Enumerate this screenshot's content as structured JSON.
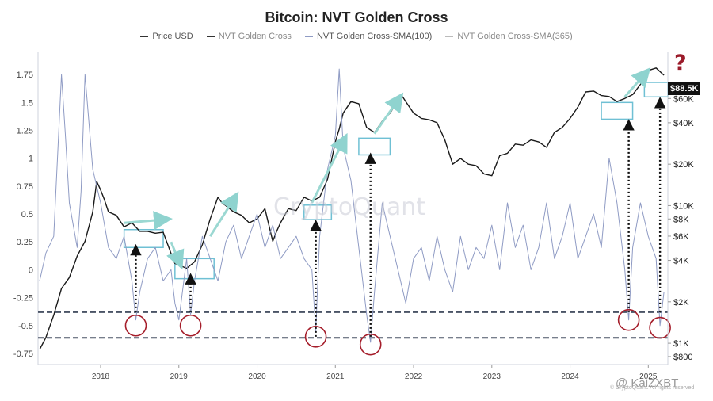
{
  "title": "Bitcoin: NVT Golden Cross",
  "legend": [
    {
      "label": "Price USD",
      "color": "#333333",
      "struck": false
    },
    {
      "label": "NVT Golden Cross",
      "color": "#555555",
      "struck": true
    },
    {
      "label": "NVT Golden Cross-SMA(100)",
      "color": "#8f9bc4",
      "struck": false
    },
    {
      "label": "NVT Golden Cross-SMA(365)",
      "color": "#bbbbbb",
      "struck": true
    }
  ],
  "watermark": "CryptoQuant",
  "question_mark": "?",
  "price_badge": "$88.5K",
  "credit": "@ KaiZXBT",
  "copyright": "© CryptoQuant. All rights reserved",
  "chart_data": {
    "type": "line",
    "x_tick_labels": [
      "2018",
      "2019",
      "2020",
      "2021",
      "2022",
      "2023",
      "2024",
      "2025"
    ],
    "x_range": [
      2017.2,
      2025.25
    ],
    "y_left_ticks": [
      "1.75",
      "1.5",
      "1.25",
      "1",
      "0.75",
      "0.5",
      "0.25",
      "0",
      "-0.25",
      "-0.5",
      "-0.75"
    ],
    "y_left_range": [
      -0.85,
      1.95
    ],
    "y_right_ticks": [
      {
        "label": "$60K",
        "value": 60000
      },
      {
        "label": "$40K",
        "value": 40000
      },
      {
        "label": "$20K",
        "value": 20000
      },
      {
        "label": "$10K",
        "value": 10000
      },
      {
        "label": "$8K",
        "value": 8000
      },
      {
        "label": "$6K",
        "value": 6000
      },
      {
        "label": "$4K",
        "value": 4000
      },
      {
        "label": "$2K",
        "value": 2000
      },
      {
        "label": "$1K",
        "value": 1000
      },
      {
        "label": "$800",
        "value": 800
      }
    ],
    "y_right_scale": "log",
    "y_right_range": [
      700,
      130000
    ],
    "threshold_lines": [
      -0.38,
      -0.61
    ],
    "series": [
      {
        "name": "Price USD",
        "axis": "right",
        "color": "#1a1a1a",
        "x": [
          2017.22,
          2017.3,
          2017.4,
          2017.5,
          2017.6,
          2017.7,
          2017.8,
          2017.9,
          2017.95,
          2018.0,
          2018.05,
          2018.1,
          2018.2,
          2018.3,
          2018.4,
          2018.5,
          2018.6,
          2018.7,
          2018.8,
          2018.9,
          2018.95,
          2019.0,
          2019.1,
          2019.2,
          2019.3,
          2019.4,
          2019.5,
          2019.55,
          2019.6,
          2019.7,
          2019.8,
          2019.9,
          2020.0,
          2020.1,
          2020.2,
          2020.25,
          2020.3,
          2020.4,
          2020.5,
          2020.6,
          2020.7,
          2020.8,
          2020.9,
          2021.0,
          2021.05,
          2021.1,
          2021.2,
          2021.3,
          2021.4,
          2021.5,
          2021.6,
          2021.7,
          2021.8,
          2021.85,
          2021.9,
          2022.0,
          2022.1,
          2022.2,
          2022.3,
          2022.4,
          2022.5,
          2022.6,
          2022.7,
          2022.8,
          2022.9,
          2023.0,
          2023.1,
          2023.2,
          2023.3,
          2023.4,
          2023.5,
          2023.6,
          2023.7,
          2023.8,
          2023.9,
          2024.0,
          2024.1,
          2024.2,
          2024.3,
          2024.4,
          2024.5,
          2024.6,
          2024.7,
          2024.8,
          2024.9,
          2025.0,
          2025.1,
          2025.2
        ],
        "y": [
          900,
          1100,
          1600,
          2500,
          3000,
          4300,
          5500,
          9000,
          15000,
          13000,
          11000,
          9000,
          8500,
          7000,
          7500,
          6500,
          6500,
          6300,
          6400,
          4500,
          3800,
          3700,
          3500,
          3900,
          5200,
          8000,
          11500,
          10500,
          10000,
          9000,
          8500,
          7500,
          8000,
          9500,
          5500,
          6500,
          7500,
          9500,
          9200,
          11500,
          10800,
          11500,
          15500,
          29000,
          36000,
          47000,
          57000,
          55000,
          37000,
          34000,
          41000,
          47000,
          58000,
          63000,
          57000,
          47000,
          43000,
          42000,
          40000,
          30000,
          20000,
          22000,
          20000,
          19500,
          17000,
          16500,
          23000,
          24000,
          28000,
          27500,
          30000,
          29000,
          26500,
          34000,
          37000,
          43000,
          52000,
          67000,
          68000,
          63000,
          62000,
          57000,
          60000,
          64000,
          76000,
          96000,
          100000,
          88500
        ]
      },
      {
        "name": "NVT Golden Cross-SMA(100)",
        "axis": "left",
        "color": "#8f9bc4",
        "x": [
          2017.22,
          2017.3,
          2017.4,
          2017.5,
          2017.55,
          2017.6,
          2017.7,
          2017.75,
          2017.8,
          2017.9,
          2018.0,
          2018.1,
          2018.2,
          2018.3,
          2018.4,
          2018.45,
          2018.5,
          2018.6,
          2018.7,
          2018.8,
          2018.9,
          2018.95,
          2019.0,
          2019.1,
          2019.15,
          2019.2,
          2019.3,
          2019.4,
          2019.5,
          2019.6,
          2019.7,
          2019.8,
          2019.9,
          2020.0,
          2020.1,
          2020.2,
          2020.3,
          2020.4,
          2020.5,
          2020.6,
          2020.7,
          2020.75,
          2020.8,
          2020.9,
          2021.0,
          2021.05,
          2021.1,
          2021.2,
          2021.3,
          2021.4,
          2021.45,
          2021.5,
          2021.6,
          2021.7,
          2021.8,
          2021.9,
          2022.0,
          2022.1,
          2022.2,
          2022.3,
          2022.4,
          2022.5,
          2022.6,
          2022.7,
          2022.8,
          2022.9,
          2023.0,
          2023.1,
          2023.2,
          2023.3,
          2023.4,
          2023.5,
          2023.6,
          2023.7,
          2023.8,
          2023.9,
          2024.0,
          2024.1,
          2024.2,
          2024.3,
          2024.4,
          2024.5,
          2024.6,
          2024.7,
          2024.75,
          2024.8,
          2024.9,
          2025.0,
          2025.1,
          2025.15,
          2025.2
        ],
        "y": [
          -0.1,
          0.15,
          0.3,
          1.75,
          1.2,
          0.6,
          0.2,
          0.7,
          1.75,
          0.9,
          0.6,
          0.2,
          0.1,
          0.3,
          -0.1,
          -0.45,
          -0.2,
          0.1,
          0.2,
          -0.1,
          0.0,
          -0.3,
          -0.45,
          0.1,
          -0.4,
          -0.1,
          0.3,
          0.1,
          -0.1,
          0.25,
          0.4,
          0.1,
          0.3,
          0.5,
          0.2,
          0.4,
          0.1,
          0.2,
          0.3,
          0.1,
          0.0,
          -0.55,
          0.3,
          0.9,
          1.2,
          1.8,
          1.1,
          0.8,
          0.2,
          -0.4,
          -0.65,
          -0.2,
          0.6,
          0.3,
          0.0,
          -0.3,
          0.1,
          0.2,
          -0.1,
          0.3,
          0.0,
          -0.2,
          0.3,
          0.0,
          0.2,
          0.1,
          0.4,
          0.0,
          0.6,
          0.2,
          0.4,
          0.0,
          0.2,
          0.6,
          0.1,
          0.3,
          0.6,
          0.1,
          0.3,
          0.5,
          0.2,
          1.0,
          0.6,
          0.0,
          -0.45,
          0.2,
          0.6,
          0.3,
          0.1,
          -0.5,
          -0.2
        ]
      }
    ],
    "annotations": {
      "circle_points": [
        [
          2018.45,
          -0.5
        ],
        [
          2019.15,
          -0.5
        ],
        [
          2020.75,
          -0.6
        ],
        [
          2021.45,
          -0.67
        ],
        [
          2024.75,
          -0.45
        ],
        [
          2025.15,
          -0.52
        ]
      ],
      "rect_zones": [
        [
          2018.3,
          2018.8,
          0.2,
          0.36
        ],
        [
          2018.95,
          2019.45,
          -0.08,
          0.1
        ],
        [
          2020.6,
          2020.95,
          0.45,
          0.58
        ],
        [
          2021.3,
          2021.7,
          1.03,
          1.18
        ],
        [
          2024.4,
          2024.8,
          1.35,
          1.5
        ],
        [
          2024.95,
          2025.25,
          1.55,
          1.68
        ]
      ],
      "arrows_up": [
        [
          2018.45,
          -0.38,
          0.18
        ],
        [
          2019.15,
          -0.38,
          -0.08
        ],
        [
          2020.75,
          -0.6,
          0.4
        ],
        [
          2021.45,
          -0.6,
          1.0
        ],
        [
          2024.75,
          -0.38,
          1.3
        ],
        [
          2025.15,
          -0.38,
          1.5
        ]
      ],
      "trend_arrows": [
        [
          2018.3,
          0.42,
          2018.8,
          0.45
        ],
        [
          2018.9,
          0.25,
          2019.0,
          0.08
        ],
        [
          2019.4,
          0.3,
          2019.7,
          0.63
        ],
        [
          2020.7,
          0.6,
          2021.1,
          1.15
        ],
        [
          2021.5,
          1.22,
          2021.8,
          1.52
        ],
        [
          2024.7,
          1.55,
          2024.95,
          1.75
        ]
      ]
    }
  }
}
